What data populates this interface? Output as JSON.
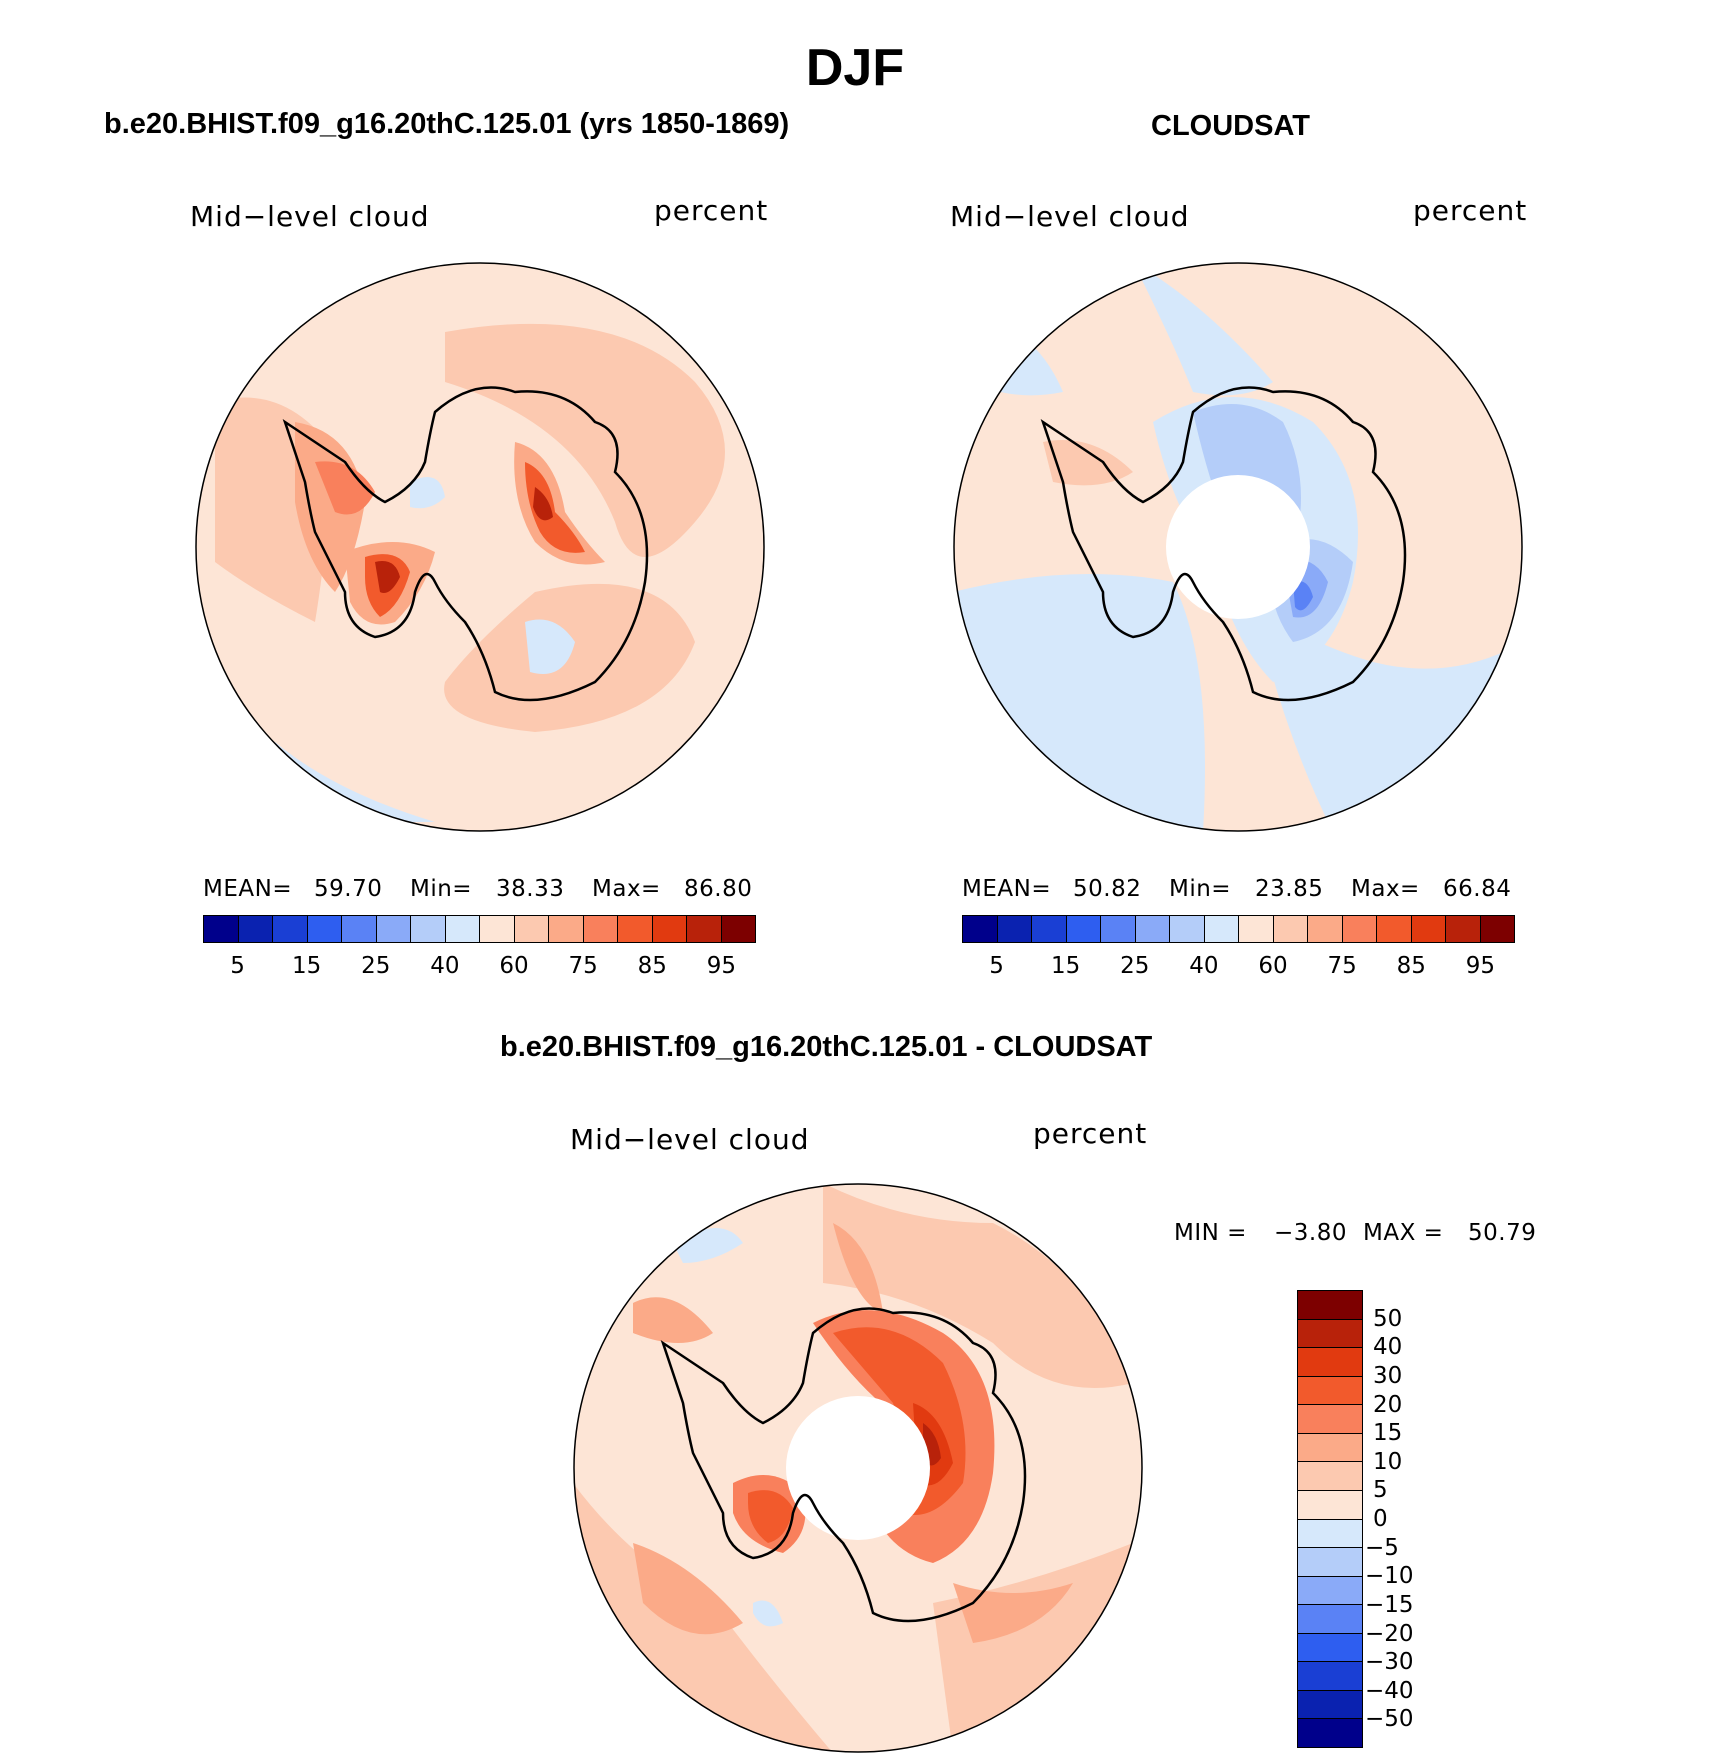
{
  "title": "DJF",
  "panels": {
    "model": {
      "title": "b.e20.BHIST.f09_g16.20thC.125.01 (yrs 1850-1869)",
      "left_label": "Mid−level cloud",
      "right_label": "percent",
      "stats": {
        "mean_label": "MEAN=",
        "mean": "59.70",
        "min_label": "Min=",
        "min": "38.33",
        "max_label": "Max=",
        "max": "86.80"
      }
    },
    "obs": {
      "title": "CLOUDSAT",
      "left_label": "Mid−level cloud",
      "right_label": "percent",
      "stats": {
        "mean_label": "MEAN=",
        "mean": "50.82",
        "min_label": "Min=",
        "min": "23.85",
        "max_label": "Max=",
        "max": "66.84"
      }
    },
    "diff": {
      "title": "b.e20.BHIST.f09_g16.20thC.125.01 - CLOUDSAT",
      "left_label": "Mid−level cloud",
      "right_label": "percent",
      "stats": {
        "min_label": "MIN =",
        "min": "−3.80",
        "max_label": "MAX =",
        "max": "50.79"
      }
    }
  },
  "colorbar_abs": {
    "colors": [
      "#00008b",
      "#0a22b0",
      "#1a3fd4",
      "#2e5ef0",
      "#5a82f5",
      "#8aaaf8",
      "#b4cdf9",
      "#d6e8fb",
      "#fde5d6",
      "#fcc9b0",
      "#fbaa88",
      "#f9805c",
      "#f25a2c",
      "#e13a10",
      "#b8220a",
      "#7d0000"
    ],
    "ticks": [
      "5",
      "15",
      "25",
      "40",
      "60",
      "75",
      "85",
      "95"
    ]
  },
  "colorbar_diff": {
    "colors": [
      "#7d0000",
      "#b8220a",
      "#e13a10",
      "#f25a2c",
      "#f9805c",
      "#fbaa88",
      "#fcc9b0",
      "#fde5d6",
      "#d6e8fb",
      "#b4cdf9",
      "#8aaaf8",
      "#5a82f5",
      "#2e5ef0",
      "#1a3fd4",
      "#0a22b0",
      "#00008b"
    ],
    "ticks": [
      "50",
      "40",
      "30",
      "20",
      "15",
      "10",
      "5",
      "0",
      "−5",
      "−10",
      "−15",
      "−20",
      "−30",
      "−40",
      "−50"
    ]
  },
  "map_colors": {
    "base": "#fde5d6",
    "light": "#fcc9b0",
    "mid": "#fbaa88",
    "strong": "#f9805c",
    "hot": "#f25a2c",
    "hotter": "#e13a10",
    "max": "#b8220a",
    "blue1": "#d6e8fb",
    "blue2": "#b4cdf9",
    "blue3": "#8aaaf8",
    "blue4": "#5a82f5"
  }
}
